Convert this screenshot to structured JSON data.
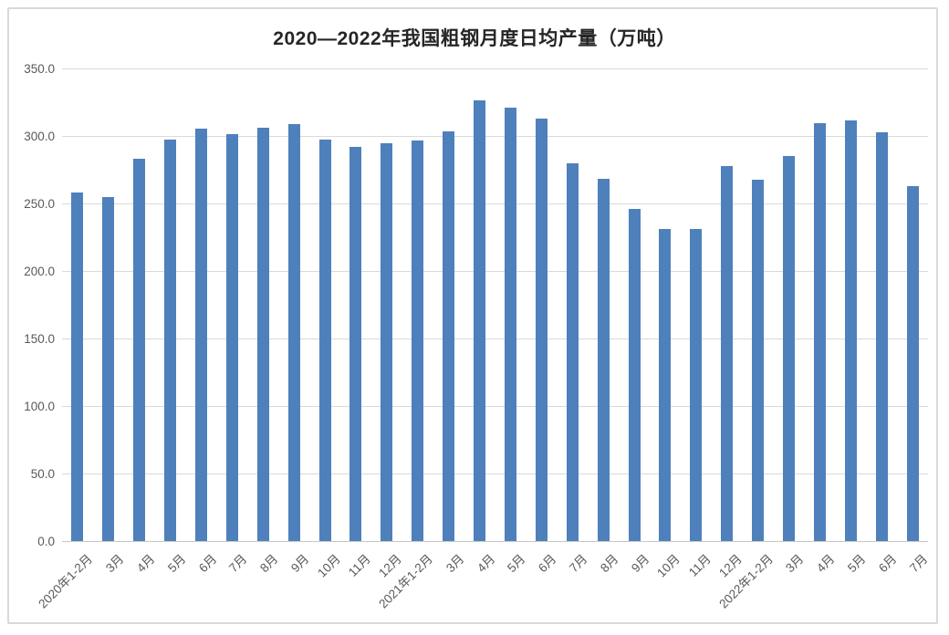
{
  "chart_data": {
    "type": "bar",
    "title": "2020—2022年我国粗钢月度日均产量（万吨）",
    "categories": [
      "2020年1-2月",
      "3月",
      "4月",
      "5月",
      "6月",
      "7月",
      "8月",
      "9月",
      "10月",
      "11月",
      "12月",
      "2021年1-2月",
      "3月",
      "4月",
      "5月",
      "6月",
      "7月",
      "8月",
      "9月",
      "10月",
      "11月",
      "12月",
      "2022年1-2月",
      "3月",
      "4月",
      "5月",
      "6月",
      "7月"
    ],
    "values": [
      257.8,
      254.8,
      283.4,
      297.6,
      305.3,
      301.2,
      306.0,
      308.5,
      297.4,
      292.2,
      294.4,
      296.6,
      303.3,
      326.2,
      320.8,
      312.9,
      280.0,
      268.5,
      245.8,
      230.9,
      231.0,
      278.0,
      267.8,
      284.8,
      309.3,
      311.6,
      302.4,
      262.7
    ],
    "xlabel": "",
    "ylabel": "",
    "ylim": [
      0,
      350
    ],
    "ytick_step": 50,
    "ytick_labels": [
      "0.0",
      "50.0",
      "100.0",
      "150.0",
      "200.0",
      "250.0",
      "300.0",
      "350.0"
    ],
    "grid": true,
    "legend": "none",
    "x_tick_rotation_deg": -45,
    "colors": {
      "bar": "#4E80BC",
      "gridline": "#D9D9D9",
      "axis_line": "#C6C6C6",
      "tick_text": "#595959",
      "title_text": "#262626",
      "frame_border": "#D9D9D9",
      "background": "#FFFFFF"
    }
  }
}
